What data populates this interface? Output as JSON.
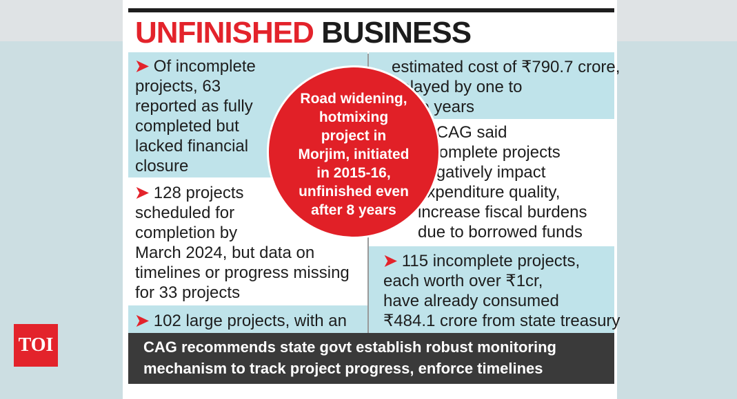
{
  "headline": {
    "red": "UNFINISHED",
    "black": "BUSINESS"
  },
  "left_panels": [
    {
      "arrow": "➤",
      "text": "Of incomplete\nprojects, 63\nreported as fully\ncompleted but\nlacked financial\nclosure"
    },
    {
      "arrow": "➤",
      "text": "128 projects\nscheduled for\ncompletion by\nMarch 2024, but data on\ntimelines or progress missing\nfor 33 projects"
    },
    {
      "arrow": "➤",
      "text": "102 large projects, with an"
    }
  ],
  "right_panels": [
    {
      "text": "estimated cost of ₹790.7 crore,\ndelayed by one to\nthree years"
    },
    {
      "arrow": "➤",
      "text": "CAG said\nincomplete projects\nnegatively impact\nexpenditure quality,\nincrease fiscal burdens\ndue to borrowed funds"
    },
    {
      "arrow": "➤",
      "text": "115 incomplete projects,\neach worth over ₹1cr,\nhave already consumed\n₹484.1 crore from state treasury"
    }
  ],
  "circle_text": "Road widening,\nhotmixing\nproject in\nMorjim, initiated\nin 2015-16,\nunfinished even\nafter 8 years",
  "footer_text": "CAG recommends state govt establish robust monitoring\nmechanism to track project progress, enforce timelines",
  "logo": "TOI",
  "colors": {
    "accent_red": "#e3232b",
    "panel_blue": "#bfe3ea",
    "footer": "#3a3a3a"
  }
}
